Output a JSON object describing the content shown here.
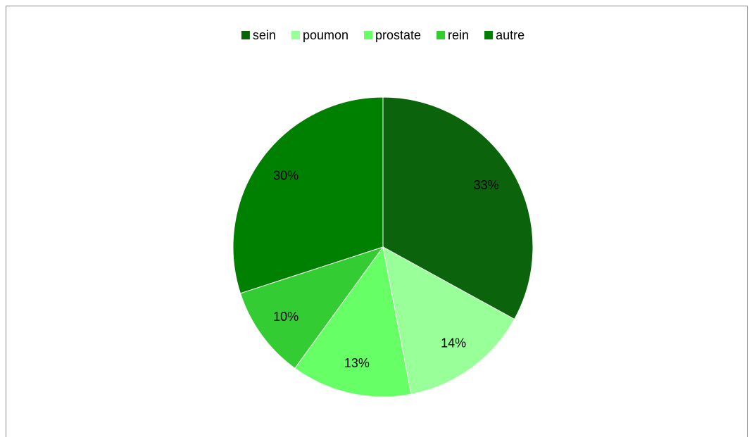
{
  "chart_data": {
    "type": "pie",
    "categories": [
      "sein",
      "poumon",
      "prostate",
      "rein",
      "autre"
    ],
    "values": [
      33,
      14,
      13,
      10,
      30
    ],
    "value_labels": [
      "33%",
      "14%",
      "13%",
      "10%",
      "30%"
    ],
    "colors": [
      "#0b640b",
      "#99ff99",
      "#66ff66",
      "#33cc33",
      "#008000"
    ],
    "legend": "top"
  }
}
